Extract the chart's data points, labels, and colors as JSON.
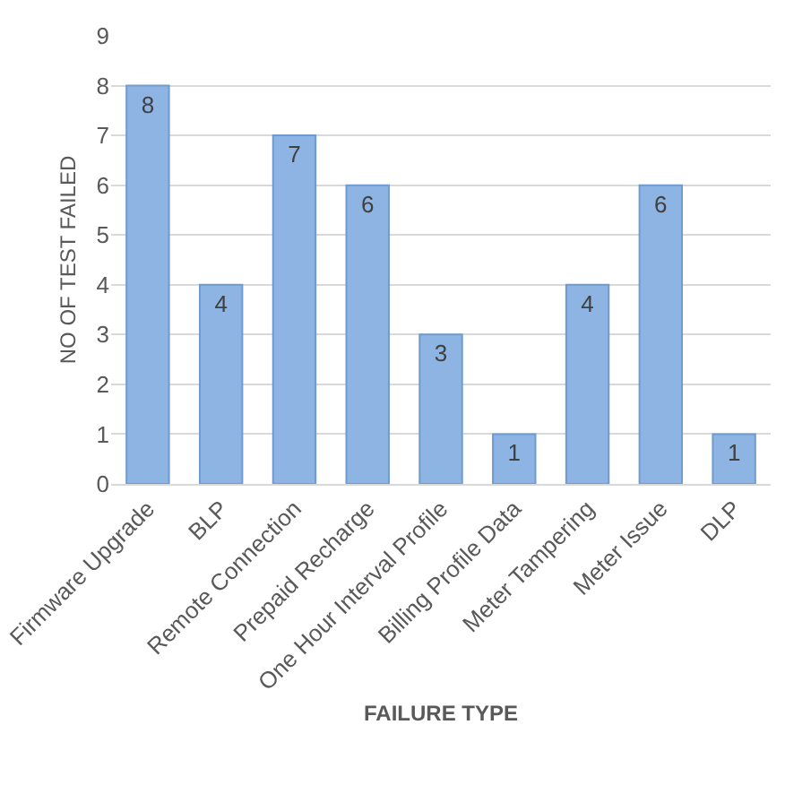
{
  "chart_data": {
    "type": "bar",
    "xlabel": "FAILURE TYPE",
    "ylabel": "NO OF TEST FAILED",
    "categories": [
      "Firmware Upgrade",
      "BLP",
      "Remote Connection",
      "Prepaid Recharge",
      "One Hour Interval Profile",
      "Billing Profile Data",
      "Meter Tampering",
      "Meter Issue",
      "DLP"
    ],
    "values": [
      8,
      4,
      7,
      6,
      3,
      1,
      4,
      6,
      1
    ],
    "color": "#8db4e2",
    "ylim": [
      0,
      9
    ],
    "yticks": [
      0,
      1,
      2,
      3,
      4,
      5,
      6,
      7,
      8,
      9
    ],
    "grid": "y",
    "data_labels": true,
    "legend": false
  }
}
